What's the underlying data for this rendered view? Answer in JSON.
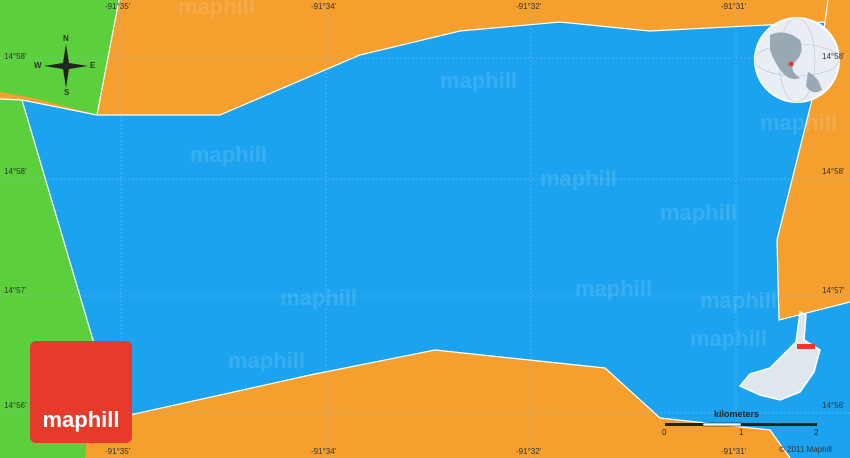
{
  "map": {
    "colors": {
      "water": "#1ba3f0",
      "land_orange": "#f49f2e",
      "land_green": "#5bcf3c",
      "grid": "#8fc5e8",
      "brand": "#e63a2b"
    },
    "longitude_labels": [
      "-91°35'",
      "-91°34'",
      "-91°32'",
      "-91°31'"
    ],
    "latitude_labels": [
      "14°58'",
      "14°58'",
      "14°57'",
      "14°56'"
    ],
    "compass": {
      "n": "N",
      "s": "S",
      "e": "E",
      "w": "W"
    },
    "watermark": "maphill",
    "logo_text": "maphill",
    "scale": {
      "title": "kilometers",
      "ticks": [
        "0",
        "1",
        "2"
      ]
    },
    "copyright": "© 2011 Maphill"
  }
}
